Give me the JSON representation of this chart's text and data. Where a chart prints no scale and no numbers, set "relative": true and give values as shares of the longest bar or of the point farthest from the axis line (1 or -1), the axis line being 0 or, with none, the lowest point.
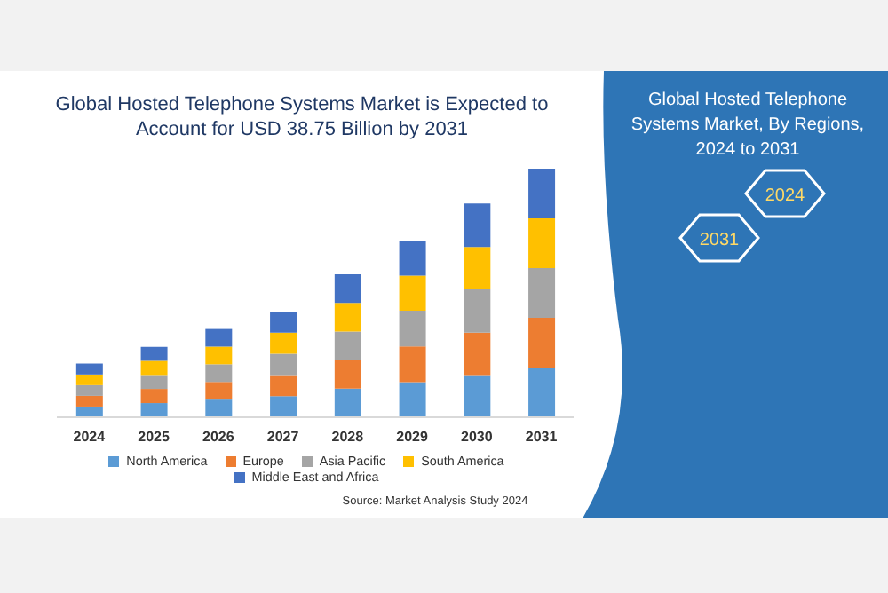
{
  "chart_data": {
    "type": "bar",
    "title": "Global Hosted Telephone Systems Market is Expected to Account for USD 38.75 Billion by 2031",
    "subtitle": "Global Hosted Telephone Systems Market, By Regions, 2024 to 2031",
    "annotations": [
      "2024",
      "2031",
      "Source: Market Analysis Study 2024"
    ],
    "categories": [
      "2024",
      "2025",
      "2026",
      "2027",
      "2028",
      "2029",
      "2030",
      "2031"
    ],
    "stacked": true,
    "relative": true,
    "legend": "bottom",
    "grid": false,
    "series": [
      {
        "name": "North America",
        "color": "#5b9bd5",
        "values": [
          0.043,
          0.057,
          0.071,
          0.085,
          0.115,
          0.141,
          0.17,
          0.2
        ]
      },
      {
        "name": "Europe",
        "color": "#ed7d31",
        "values": [
          0.043,
          0.057,
          0.071,
          0.085,
          0.115,
          0.144,
          0.17,
          0.2
        ]
      },
      {
        "name": "Asia Pacific",
        "color": "#a5a5a5",
        "values": [
          0.043,
          0.056,
          0.071,
          0.085,
          0.115,
          0.144,
          0.175,
          0.2
        ]
      },
      {
        "name": "South America",
        "color": "#ffc000",
        "values": [
          0.043,
          0.057,
          0.071,
          0.085,
          0.115,
          0.141,
          0.17,
          0.2
        ]
      },
      {
        "name": "Middle East and Africa",
        "color": "#4472c4",
        "values": [
          0.044,
          0.056,
          0.071,
          0.085,
          0.115,
          0.141,
          0.175,
          0.2
        ]
      }
    ]
  }
}
